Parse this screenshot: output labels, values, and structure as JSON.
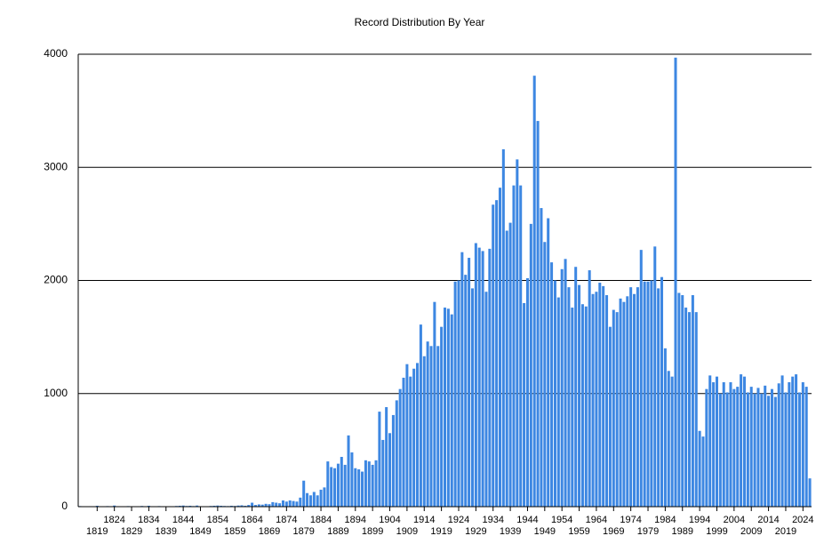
{
  "chart_data": {
    "type": "bar",
    "title": "Record Distribution By Year",
    "color": "#3d87e2",
    "grid": true,
    "ylim": [
      0,
      4000
    ],
    "yticks": [
      0,
      1000,
      2000,
      3000,
      4000
    ],
    "categories": [
      null,
      null,
      null,
      null,
      null,
      "1819",
      null,
      null,
      null,
      null,
      "1824",
      null,
      null,
      null,
      null,
      "1829",
      null,
      null,
      null,
      null,
      "1834",
      null,
      null,
      null,
      null,
      "1839",
      null,
      null,
      null,
      null,
      "1844",
      null,
      null,
      null,
      null,
      "1849",
      null,
      null,
      null,
      null,
      "1854",
      null,
      null,
      null,
      null,
      "1859",
      null,
      null,
      null,
      null,
      "1864",
      null,
      null,
      null,
      null,
      "1869",
      null,
      null,
      null,
      null,
      "1874",
      null,
      null,
      null,
      null,
      "1879",
      null,
      null,
      null,
      null,
      "1884",
      null,
      null,
      null,
      null,
      "1889",
      null,
      null,
      null,
      null,
      "1894",
      null,
      null,
      null,
      null,
      "1899",
      null,
      null,
      null,
      null,
      "1904",
      null,
      null,
      null,
      null,
      "1909",
      null,
      null,
      null,
      null,
      "1914",
      null,
      null,
      null,
      null,
      "1919",
      null,
      null,
      null,
      null,
      "1924",
      null,
      null,
      null,
      null,
      "1929",
      null,
      null,
      null,
      null,
      "1934",
      null,
      null,
      null,
      null,
      "1939",
      null,
      null,
      null,
      null,
      "1944",
      null,
      null,
      null,
      null,
      "1949",
      null,
      null,
      null,
      null,
      "1954",
      null,
      null,
      null,
      null,
      "1959",
      null,
      null,
      null,
      null,
      "1964",
      null,
      null,
      null,
      null,
      "1969",
      null,
      null,
      null,
      null,
      "1974",
      null,
      null,
      null,
      null,
      "1979",
      null,
      null,
      null,
      null,
      "1984",
      null,
      null,
      null,
      null,
      "1989",
      null,
      null,
      null,
      null,
      "1994",
      null,
      null,
      null,
      null,
      "1999",
      null,
      null,
      null,
      null,
      "2004",
      null,
      null,
      null,
      null,
      "2009",
      null,
      null,
      null,
      null,
      "2014",
      null,
      null,
      null,
      null,
      "2019",
      null,
      null,
      null,
      null,
      "2024",
      null,
      null
    ],
    "values": [
      5,
      3,
      2,
      4,
      3,
      8,
      2,
      3,
      5,
      3,
      10,
      4,
      3,
      2,
      5,
      3,
      2,
      4,
      6,
      3,
      8,
      3,
      2,
      5,
      3,
      2,
      4,
      3,
      6,
      8,
      10,
      6,
      8,
      5,
      10,
      4,
      3,
      2,
      6,
      8,
      10,
      8,
      6,
      5,
      8,
      6,
      10,
      12,
      8,
      15,
      35,
      15,
      20,
      18,
      25,
      22,
      40,
      35,
      30,
      55,
      45,
      55,
      50,
      45,
      80,
      230,
      120,
      100,
      130,
      100,
      150,
      170,
      400,
      350,
      340,
      380,
      440,
      370,
      630,
      480,
      340,
      330,
      310,
      410,
      400,
      370,
      410,
      840,
      590,
      880,
      650,
      810,
      940,
      1040,
      1140,
      1260,
      1150,
      1220,
      1270,
      1610,
      1330,
      1460,
      1420,
      1810,
      1420,
      1590,
      1760,
      1750,
      1700,
      1990,
      2000,
      2250,
      2050,
      2200,
      1930,
      2330,
      2290,
      2260,
      1900,
      2280,
      2670,
      2710,
      2820,
      3160,
      2440,
      2510,
      2840,
      3070,
      2840,
      1800,
      2020,
      2500,
      3810,
      3410,
      2640,
      2340,
      2550,
      2160,
      2000,
      1850,
      2100,
      2190,
      1940,
      1760,
      2120,
      1960,
      1790,
      1770,
      2090,
      1880,
      1900,
      1980,
      1950,
      1870,
      1590,
      1740,
      1720,
      1840,
      1810,
      1860,
      1940,
      1880,
      1940,
      2270,
      1990,
      1990,
      2000,
      2300,
      1930,
      2030,
      1400,
      1200,
      1150,
      3970,
      1890,
      1870,
      1760,
      1720,
      1870,
      1720,
      670,
      620,
      1040,
      1160,
      1100,
      1150,
      1000,
      1100,
      1010,
      1100,
      1040,
      1060,
      1170,
      1150,
      1010,
      1060,
      1000,
      1050,
      1000,
      1070,
      980,
      1040,
      970,
      1090,
      1160,
      1010,
      1100,
      1150,
      1170,
      1010,
      1100,
      1060,
      250
    ]
  }
}
